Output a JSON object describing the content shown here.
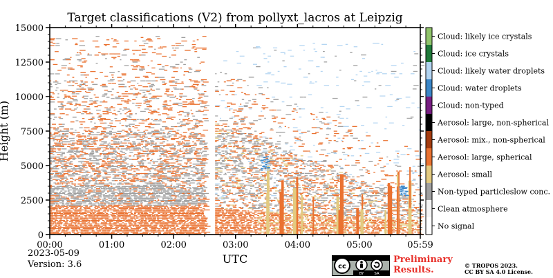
{
  "chart_data": {
    "type": "heatmap",
    "title": "Target classifications (V2) from pollyxt_lacros at Leipzig",
    "xlabel": "UTC",
    "ylabel": "Height (m)",
    "x_range": [
      "00:00",
      "05:59"
    ],
    "xlim_hours": [
      0,
      5.983
    ],
    "ylim": [
      0,
      15000
    ],
    "x_ticks": [
      "00:00",
      "01:00",
      "02:00",
      "03:00",
      "04:00",
      "05:00",
      "05:59"
    ],
    "y_ticks": [
      0,
      2500,
      5000,
      7500,
      10000,
      12500,
      15000
    ],
    "data_gap_hours": [
      2.5,
      2.67
    ],
    "colorbar": {
      "position": "right",
      "classes": [
        {
          "label": "No signal",
          "color": "#ffffff"
        },
        {
          "label": "Clean atmosphere",
          "color": "#f4f4f4"
        },
        {
          "label": "Non-typed particleslow conc.",
          "color": "#a0a0a0"
        },
        {
          "label": "Aerosol: small",
          "color": "#e3ca80"
        },
        {
          "label": "Aerosol: large, spherical",
          "color": "#ea7231"
        },
        {
          "label": "Aerosol: mix., non-spherical",
          "color": "#a53c10"
        },
        {
          "label": "Aerosol: large, non-spherical",
          "color": "#000000"
        },
        {
          "label": "Cloud: non-typed",
          "color": "#781e82"
        },
        {
          "label": "Cloud: water droplets",
          "color": "#3b87c9"
        },
        {
          "label": "Cloud: likely water droplets",
          "color": "#b3d5f2"
        },
        {
          "label": "Cloud: ice crystals",
          "color": "#1f7a3a"
        },
        {
          "label": "Cloud: likely ice crystals",
          "color": "#90c46b"
        }
      ]
    },
    "layers": [
      {
        "class": "Aerosol: large, spherical",
        "description_time": [
          0,
          2.5
        ],
        "top_m": 2200
      },
      {
        "class": "Non-typed particleslow conc.",
        "description_time": [
          0,
          2.5
        ],
        "top_m": 7000
      }
    ]
  },
  "footer": {
    "date": "2023-05-09",
    "version": "Version: 3.6",
    "preliminary_line1": "Preliminary",
    "preliminary_line2": "Results.",
    "copyright_line1": "© TROPOS 2023.",
    "copyright_line2": "CC BY SA 4.0 License.",
    "cc_icons": [
      "cc",
      "by",
      "sa"
    ]
  }
}
